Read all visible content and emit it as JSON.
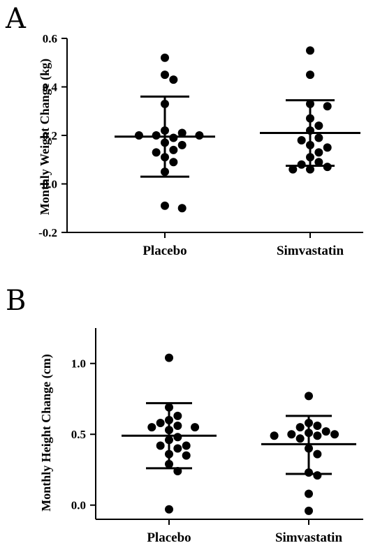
{
  "chart_data": [
    {
      "type": "scatter",
      "panel_label": "A",
      "ylabel": "Monthly Weight Change (kg)",
      "categories": [
        "Placebo",
        "Simvastatin"
      ],
      "ylim": [
        -0.2,
        0.6
      ],
      "yticks": [
        "-0.2",
        "0.0",
        "0.2",
        "0.4",
        "0.6"
      ],
      "series": [
        {
          "category": "Placebo",
          "points": [
            0.52,
            0.45,
            0.43,
            0.33,
            0.22,
            0.21,
            0.2,
            0.2,
            0.2,
            0.19,
            0.17,
            0.16,
            0.14,
            0.13,
            0.11,
            0.09,
            0.05,
            -0.09,
            -0.1
          ],
          "mean": 0.195,
          "sd_low": 0.03,
          "sd_high": 0.36
        },
        {
          "category": "Simvastatin",
          "points": [
            0.55,
            0.45,
            0.33,
            0.32,
            0.27,
            0.24,
            0.22,
            0.19,
            0.18,
            0.16,
            0.15,
            0.13,
            0.11,
            0.09,
            0.08,
            0.07,
            0.06,
            0.06
          ],
          "mean": 0.21,
          "sd_low": 0.075,
          "sd_high": 0.345
        }
      ]
    },
    {
      "type": "scatter",
      "panel_label": "B",
      "ylabel": "Monthly Height Change (cm)",
      "categories": [
        "Placebo",
        "Simvastatin"
      ],
      "ylim": [
        -0.1,
        1.25
      ],
      "yticks": [
        "0.0",
        "0.5",
        "1.0"
      ],
      "series": [
        {
          "category": "Placebo",
          "points": [
            1.04,
            0.69,
            0.63,
            0.6,
            0.58,
            0.56,
            0.55,
            0.55,
            0.53,
            0.48,
            0.46,
            0.42,
            0.42,
            0.4,
            0.36,
            0.35,
            0.29,
            0.24,
            -0.03
          ],
          "mean": 0.49,
          "sd_low": 0.26,
          "sd_high": 0.72
        },
        {
          "category": "Simvastatin",
          "points": [
            0.77,
            0.58,
            0.56,
            0.55,
            0.52,
            0.51,
            0.5,
            0.5,
            0.49,
            0.49,
            0.47,
            0.4,
            0.36,
            0.23,
            0.21,
            0.08,
            -0.04
          ],
          "mean": 0.43,
          "sd_low": 0.22,
          "sd_high": 0.63
        }
      ]
    }
  ]
}
